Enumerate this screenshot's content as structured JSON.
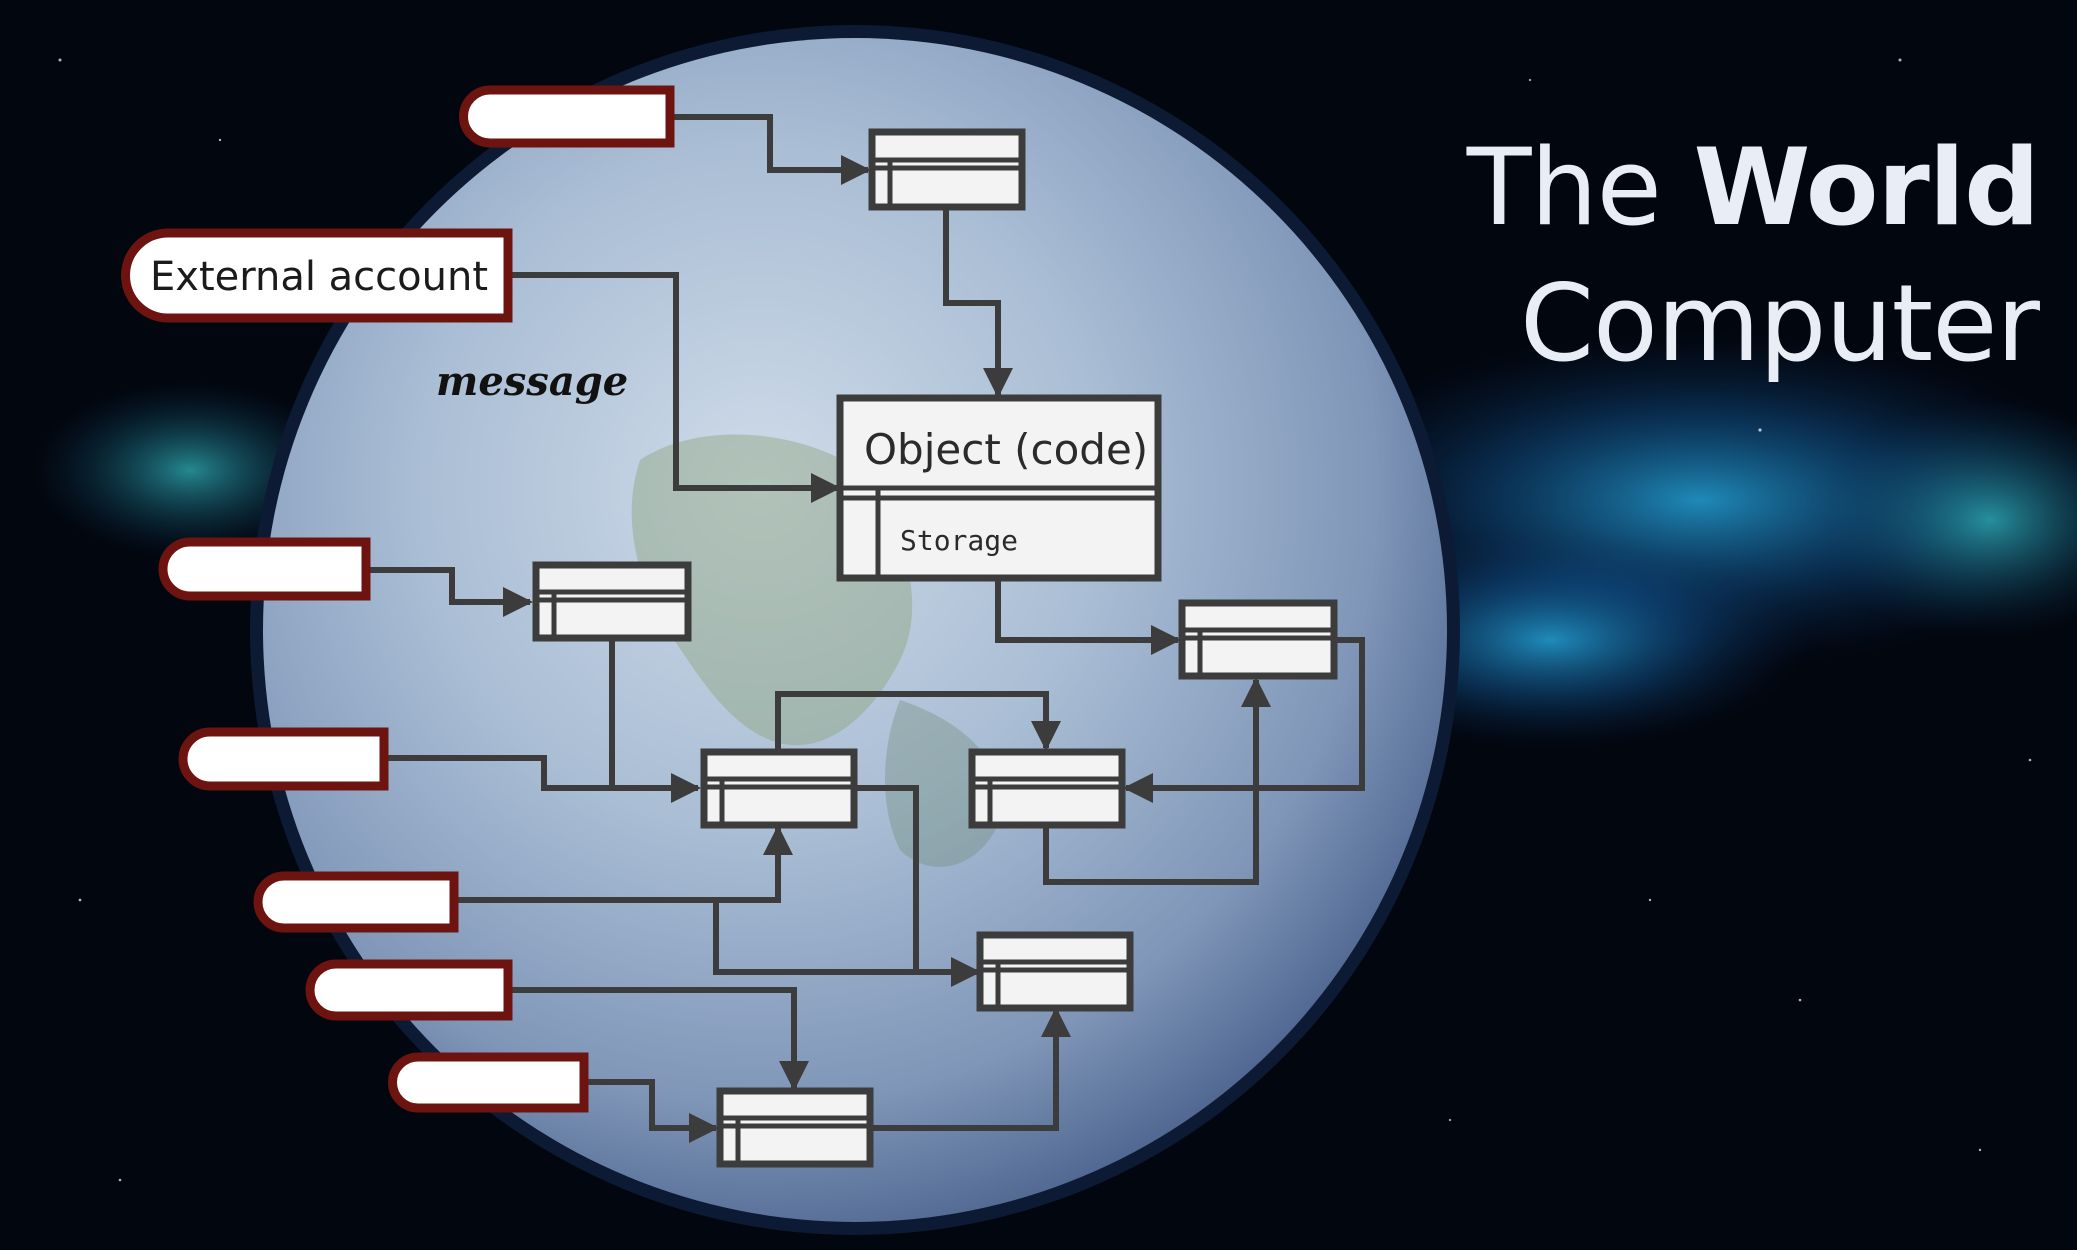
{
  "title": {
    "line1_light": "The ",
    "line1_bold": "World",
    "line2": "Computer"
  },
  "external_account": {
    "label": "External account"
  },
  "message_label": "message",
  "contract_object": {
    "title": "Object (code)",
    "storage": "Storage"
  },
  "colors": {
    "background": "#02060e",
    "nebula": "#1a8fd8",
    "account_border": "#6e1410",
    "box_stroke": "#3c3c3c",
    "arrow": "#3c3c3c",
    "title_text": "#e9eef6"
  }
}
